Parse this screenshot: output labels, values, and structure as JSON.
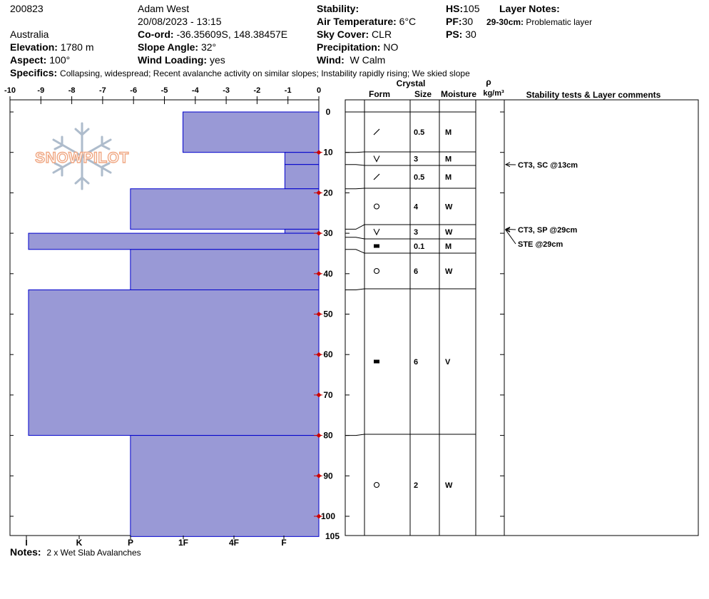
{
  "header": {
    "pit_id": "200823",
    "observer": "Adam West",
    "datetime": "20/08/2023 - 13:15",
    "country": "Australia",
    "elevation_label": "Elevation:",
    "elevation": "1780 m",
    "aspect_label": "Aspect:",
    "aspect": "100°",
    "coord_label": "Co-ord:",
    "coord": "-36.35609S, 148.38457E",
    "slope_label": "Slope Angle:",
    "slope": "32°",
    "wind_loading_label": "Wind Loading:",
    "wind_loading": "yes",
    "stability_label": "Stability:",
    "stability": "",
    "air_temp_label": "Air Temperature:",
    "air_temp": "6°C",
    "sky_label": "Sky Cover:",
    "sky": "CLR",
    "precip_label": "Precipitation:",
    "precip": "NO",
    "wind_label": "Wind:",
    "wind": "W Calm",
    "hs_label": "HS:",
    "hs": "105",
    "pf_label": "PF:",
    "pf": "30",
    "ps_label": "PS:",
    "ps": "30",
    "layer_notes_label": "Layer Notes:",
    "layer_note_depth": "29-30cm:",
    "layer_note_text": "Problematic layer",
    "specifics_label": "Specifics:",
    "specifics": "Collapsing, widespread;  Recent avalanche activity on similar slopes;  Instability rapidly rising;  We skied slope"
  },
  "notes": {
    "label": "Notes:",
    "text": "2 x Wet Slab Avalanches"
  },
  "logo_text": "SNOWPILOT",
  "colors": {
    "bar_fill": "#9999d6",
    "bar_stroke": "#0000cc",
    "marker": "#cc0000"
  },
  "chart_data": {
    "type": "bar",
    "orientation": "horizontal",
    "subject": "snow pit profile",
    "top_axis": {
      "ticks": [
        -10,
        -9,
        -8,
        -7,
        -6,
        -5,
        -4,
        -3,
        -2,
        -1,
        0
      ],
      "range": [
        -10,
        0
      ]
    },
    "depth_axis": {
      "range": [
        0,
        105
      ],
      "ticks": [
        0,
        10,
        20,
        30,
        40,
        50,
        60,
        70,
        80,
        90,
        100
      ],
      "bottom_label": "105"
    },
    "hardness_labels": [
      "I",
      "K",
      "P",
      "1F",
      "4F",
      "F"
    ],
    "hardness_layers": [
      {
        "top": 0,
        "bottom": 10,
        "value": -4.4
      },
      {
        "top": 10,
        "bottom": 13,
        "value": -1.1
      },
      {
        "top": 13,
        "bottom": 19,
        "value": -1.1
      },
      {
        "top": 19,
        "bottom": 29,
        "value": -6.1
      },
      {
        "top": 29,
        "bottom": 30,
        "value": -1.1
      },
      {
        "top": 30,
        "bottom": 34,
        "value": -9.4
      },
      {
        "top": 34,
        "bottom": 44,
        "value": -6.1
      },
      {
        "top": 44,
        "bottom": 80,
        "value": -9.4
      },
      {
        "top": 80,
        "bottom": 105,
        "value": -6.1
      }
    ],
    "temperature_markers": [
      10,
      20,
      30,
      40,
      50,
      60,
      70,
      80,
      90,
      100
    ],
    "table_headers": {
      "crystal": "Crystal",
      "form": "Form",
      "size": "Size",
      "moisture": "Moisture",
      "rho": "ρ",
      "density": "kg/m³",
      "tests": "Stability tests & Layer comments"
    },
    "layers": [
      {
        "top": 0,
        "bottom": 10,
        "form": "DF",
        "size": "0.5",
        "moisture": "M"
      },
      {
        "top": 10,
        "bottom": 13,
        "form": "SH",
        "size": "3",
        "moisture": "M"
      },
      {
        "top": 13,
        "bottom": 19,
        "form": "DF",
        "size": "0.5",
        "moisture": "M"
      },
      {
        "top": 19,
        "bottom": 29,
        "form": "MF",
        "size": "4",
        "moisture": "W"
      },
      {
        "top": 29,
        "bottom": 31,
        "form": "SH",
        "size": "3",
        "moisture": "W"
      },
      {
        "top": 31,
        "bottom": 34,
        "form": "IF",
        "size": "0.1",
        "moisture": "M"
      },
      {
        "top": 34,
        "bottom": 44,
        "form": "MF",
        "size": "6",
        "moisture": "W"
      },
      {
        "top": 44,
        "bottom": 80,
        "form": "IF",
        "size": "6",
        "moisture": "V"
      },
      {
        "top": 80,
        "bottom": 105,
        "form": "MF",
        "size": "2",
        "moisture": "W"
      }
    ],
    "stability_tests": [
      {
        "depth": 13,
        "text": "CT3, SC @13cm"
      },
      {
        "depth": 29,
        "text": "CT3, SP @29cm"
      },
      {
        "depth": 29,
        "text": "STE @29cm"
      }
    ]
  }
}
